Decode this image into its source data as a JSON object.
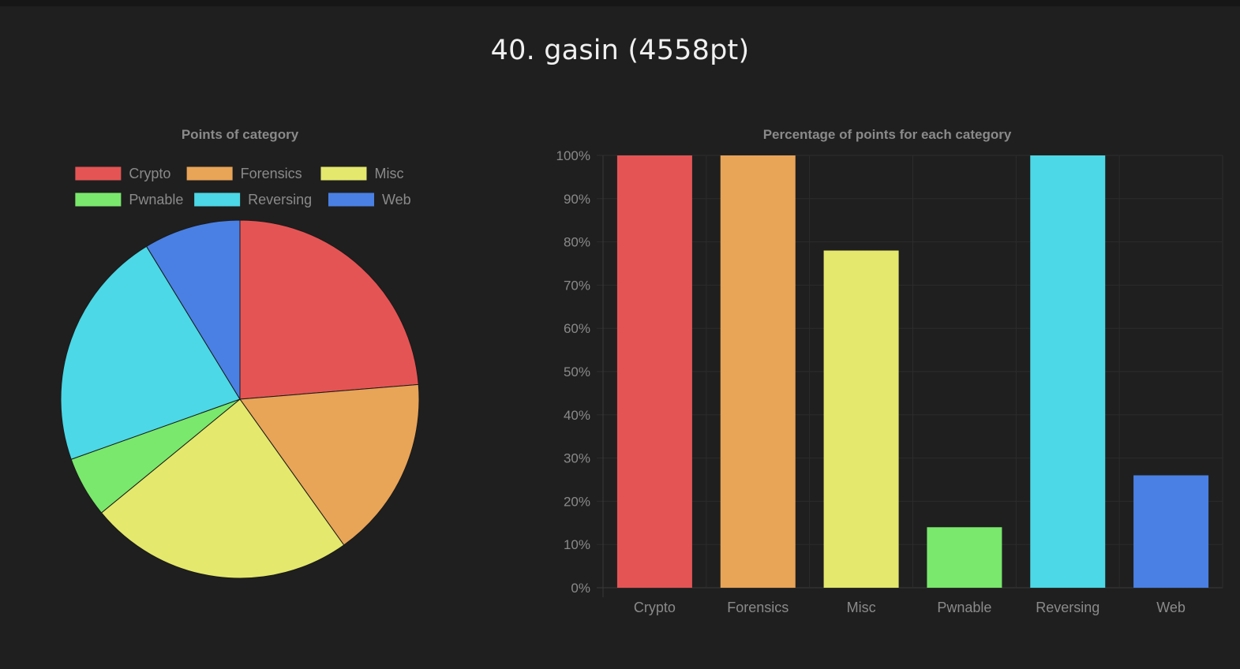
{
  "page": {
    "title": "40. gasin (4558pt)"
  },
  "colors": {
    "background": "#1f1f1f",
    "text_muted": "#8a8a8a",
    "grid": "#2c2c2c"
  },
  "chart_data": [
    {
      "type": "pie",
      "title": "Points of category",
      "legend_position": "top",
      "categories": [
        "Crypto",
        "Forensics",
        "Misc",
        "Pwnable",
        "Reversing",
        "Web"
      ],
      "values": [
        1080,
        750,
        1090,
        250,
        990,
        398
      ],
      "colors": [
        "#e55454",
        "#e8a457",
        "#e4e86c",
        "#79e86c",
        "#4cd8e6",
        "#4a80e4"
      ]
    },
    {
      "type": "bar",
      "title": "Percentage of points for each category",
      "categories": [
        "Crypto",
        "Forensics",
        "Misc",
        "Pwnable",
        "Reversing",
        "Web"
      ],
      "values": [
        100,
        100,
        78,
        14,
        100,
        26
      ],
      "colors": [
        "#e55454",
        "#e8a457",
        "#e4e86c",
        "#79e86c",
        "#4cd8e6",
        "#4a80e4"
      ],
      "y_ticks": [
        "0%",
        "10%",
        "20%",
        "30%",
        "40%",
        "50%",
        "60%",
        "70%",
        "80%",
        "90%",
        "100%"
      ],
      "ylim": [
        0,
        100
      ],
      "grid": true,
      "legend": false
    }
  ]
}
